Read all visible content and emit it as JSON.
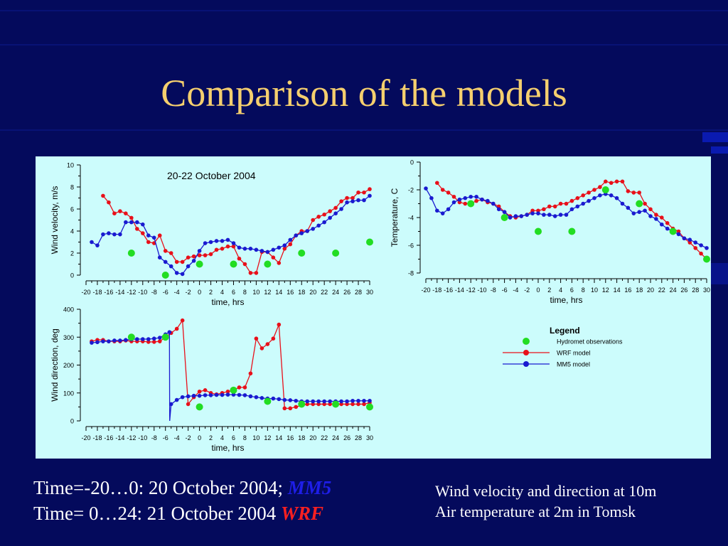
{
  "slide_title": "Comparison of the models",
  "caption_left": {
    "line1": "Time=-20…0: 20 October 2004; ",
    "line1_model": "MM5",
    "line2": "Time=  0…24: 21 October 2004 ",
    "line2_model": "WRF"
  },
  "caption_right": {
    "line1": "Wind velocity and direction at 10m",
    "line2": "Air temperature at 2m in Tomsk"
  },
  "colors": {
    "background": "#040a5c",
    "title": "#f5cf6e",
    "panel": "#ccfcfc",
    "wrf": "#e8101a",
    "mm5": "#1a1ad0",
    "obs": "#22dd22"
  },
  "legend": {
    "title": "Legend",
    "items": [
      "Hydromet observations",
      "WRF model",
      "MM5 model"
    ]
  },
  "chart_data": [
    {
      "type": "line",
      "title": "20-22 October 2004",
      "xlabel": "time, hrs",
      "ylabel": "Wind velocity, m/s",
      "xlim": [
        -20,
        30
      ],
      "ylim": [
        0,
        10
      ],
      "yticks": [
        0,
        2,
        4,
        6,
        8,
        10
      ],
      "xticks": [
        -20,
        -18,
        -16,
        -14,
        -12,
        -10,
        -8,
        -6,
        -4,
        -2,
        0,
        2,
        4,
        6,
        8,
        10,
        12,
        14,
        16,
        18,
        20,
        22,
        24,
        26,
        28,
        30
      ],
      "series": [
        {
          "name": "WRF model",
          "kind": "line",
          "x": [
            -17,
            -16,
            -15,
            -14,
            -13,
            -12,
            -11,
            -10,
            -9,
            -8,
            -7,
            -6,
            -5,
            -4,
            -3,
            -2,
            -1,
            0,
            1,
            2,
            3,
            4,
            5,
            6,
            7,
            8,
            9,
            10,
            11,
            12,
            13,
            14,
            15,
            16,
            17,
            18,
            19,
            20,
            21,
            22,
            23,
            24,
            25,
            26,
            27,
            28,
            29,
            30
          ],
          "y": [
            7.2,
            6.6,
            5.6,
            5.8,
            5.6,
            5.2,
            4.2,
            3.8,
            3.0,
            2.9,
            3.6,
            2.2,
            2.0,
            1.2,
            1.2,
            1.6,
            1.7,
            1.8,
            1.8,
            1.9,
            2.3,
            2.4,
            2.6,
            2.6,
            1.5,
            1.0,
            0.2,
            0.2,
            2.1,
            2.1,
            1.6,
            1.1,
            2.4,
            2.8,
            3.6,
            4.0,
            4.0,
            5.0,
            5.3,
            5.5,
            5.8,
            6.1,
            6.7,
            7.0,
            7.0,
            7.5,
            7.5,
            7.8
          ]
        },
        {
          "name": "MM5 model",
          "kind": "line",
          "x": [
            -19,
            -18,
            -17,
            -16,
            -15,
            -14,
            -13,
            -12,
            -11,
            -10,
            -9,
            -8,
            -7,
            -6,
            -5,
            -4,
            -3,
            -2,
            -1,
            0,
            1,
            2,
            3,
            4,
            5,
            6,
            7,
            8,
            9,
            10,
            11,
            12,
            13,
            14,
            15,
            16,
            17,
            18,
            19,
            20,
            21,
            22,
            23,
            24,
            25,
            26,
            27,
            28,
            29,
            30
          ],
          "y": [
            3.0,
            2.7,
            3.7,
            3.8,
            3.7,
            3.7,
            4.8,
            4.8,
            4.8,
            4.6,
            3.6,
            3.4,
            1.6,
            1.2,
            0.8,
            0.2,
            0.1,
            0.8,
            1.3,
            2.2,
            2.9,
            3.0,
            3.1,
            3.1,
            3.2,
            2.9,
            2.5,
            2.4,
            2.4,
            2.3,
            2.2,
            2.1,
            2.3,
            2.5,
            2.7,
            3.2,
            3.6,
            3.8,
            4.0,
            4.2,
            4.5,
            4.8,
            5.2,
            5.6,
            6.0,
            6.6,
            6.7,
            6.8,
            6.8,
            7.2
          ]
        },
        {
          "name": "Hydromet observations",
          "kind": "points",
          "x": [
            -12,
            -6,
            0,
            6,
            12,
            18,
            24,
            30
          ],
          "y": [
            2.0,
            0.0,
            1.0,
            1.0,
            1.0,
            2.0,
            2.0,
            3.0
          ]
        }
      ]
    },
    {
      "type": "line",
      "xlabel": "time, hrs",
      "ylabel": "Temperature, C",
      "xlim": [
        -20,
        30
      ],
      "ylim": [
        -8,
        0
      ],
      "yticks": [
        0,
        -2,
        -4,
        -6,
        -8
      ],
      "xticks": [
        -20,
        -18,
        -16,
        -14,
        -12,
        -10,
        -8,
        -6,
        -4,
        -2,
        0,
        2,
        4,
        6,
        8,
        10,
        12,
        14,
        16,
        18,
        20,
        22,
        24,
        26,
        28,
        30
      ],
      "series": [
        {
          "name": "WRF model",
          "kind": "line",
          "x": [
            -18,
            -17,
            -16,
            -15,
            -14,
            -13,
            -12,
            -11,
            -10,
            -9,
            -8,
            -7,
            -6,
            -5,
            -4,
            -3,
            -2,
            -1,
            0,
            1,
            2,
            3,
            4,
            5,
            6,
            7,
            8,
            9,
            10,
            11,
            12,
            13,
            14,
            15,
            16,
            17,
            18,
            19,
            20,
            21,
            22,
            23,
            24,
            25,
            26,
            27,
            28,
            29,
            30
          ],
          "y": [
            -1.5,
            -2.0,
            -2.2,
            -2.5,
            -2.9,
            -3.0,
            -3.0,
            -2.8,
            -2.7,
            -2.9,
            -3.0,
            -3.2,
            -3.6,
            -3.9,
            -4.0,
            -3.9,
            -3.8,
            -3.5,
            -3.5,
            -3.4,
            -3.2,
            -3.2,
            -3.0,
            -3.0,
            -2.8,
            -2.6,
            -2.4,
            -2.2,
            -2.0,
            -1.8,
            -1.4,
            -1.5,
            -1.4,
            -1.4,
            -2.1,
            -2.2,
            -2.2,
            -3.0,
            -3.4,
            -3.8,
            -4.0,
            -4.4,
            -4.8,
            -5.0,
            -5.5,
            -5.8,
            -6.2,
            -6.6,
            -7.0
          ]
        },
        {
          "name": "MM5 model",
          "kind": "line",
          "x": [
            -20,
            -19,
            -18,
            -17,
            -16,
            -15,
            -14,
            -13,
            -12,
            -11,
            -10,
            -9,
            -8,
            -7,
            -6,
            -5,
            -4,
            -3,
            -2,
            -1,
            0,
            1,
            2,
            3,
            4,
            5,
            6,
            7,
            8,
            9,
            10,
            11,
            12,
            13,
            14,
            15,
            16,
            17,
            18,
            19,
            20,
            21,
            22,
            23,
            24,
            25,
            26,
            27,
            28,
            29,
            30
          ],
          "y": [
            -1.9,
            -2.6,
            -3.5,
            -3.7,
            -3.4,
            -2.9,
            -2.7,
            -2.6,
            -2.5,
            -2.5,
            -2.7,
            -2.8,
            -3.0,
            -3.4,
            -3.6,
            -4.0,
            -3.9,
            -3.9,
            -3.8,
            -3.7,
            -3.7,
            -3.8,
            -3.8,
            -3.9,
            -3.8,
            -3.8,
            -3.4,
            -3.2,
            -3.0,
            -2.8,
            -2.6,
            -2.4,
            -2.3,
            -2.4,
            -2.6,
            -3.0,
            -3.3,
            -3.7,
            -3.6,
            -3.5,
            -3.9,
            -4.1,
            -4.5,
            -4.8,
            -5.0,
            -5.2,
            -5.5,
            -5.6,
            -5.8,
            -6.0,
            -6.2
          ]
        },
        {
          "name": "Hydromet observations",
          "kind": "points",
          "x": [
            -12,
            -6,
            0,
            6,
            12,
            18,
            24,
            30
          ],
          "y": [
            -3.0,
            -4.0,
            -5.0,
            -5.0,
            -2.0,
            -3.0,
            -5.0,
            -7.0
          ]
        }
      ]
    },
    {
      "type": "line",
      "xlabel": "time, hrs",
      "ylabel": "Wind direction, deg",
      "xlim": [
        -20,
        30
      ],
      "ylim": [
        0,
        400
      ],
      "yticks": [
        0,
        100,
        200,
        300,
        400
      ],
      "xticks": [
        -20,
        -18,
        -16,
        -14,
        -12,
        -10,
        -8,
        -6,
        -4,
        -2,
        0,
        2,
        4,
        6,
        8,
        10,
        12,
        14,
        16,
        18,
        20,
        22,
        24,
        26,
        28,
        30
      ],
      "series": [
        {
          "name": "WRF model",
          "kind": "line",
          "x": [
            -19,
            -18,
            -17,
            -16,
            -15,
            -14,
            -13,
            -12,
            -11,
            -10,
            -9,
            -8,
            -7,
            -6,
            -5,
            -4,
            -3,
            -2,
            -1,
            0,
            1,
            2,
            3,
            4,
            5,
            6,
            7,
            8,
            9,
            10,
            11,
            12,
            13,
            14,
            15,
            16,
            17,
            18,
            19,
            20,
            21,
            22,
            23,
            24,
            25,
            26,
            27,
            28,
            29,
            30
          ],
          "y": [
            285,
            290,
            290,
            285,
            285,
            285,
            288,
            285,
            285,
            285,
            283,
            283,
            285,
            300,
            315,
            330,
            360,
            60,
            85,
            105,
            110,
            100,
            95,
            100,
            105,
            110,
            120,
            120,
            170,
            295,
            260,
            275,
            295,
            345,
            45,
            45,
            50,
            55,
            60,
            60,
            60,
            60,
            60,
            60,
            60,
            60,
            60,
            60,
            60,
            65
          ]
        },
        {
          "name": "MM5 model",
          "kind": "line",
          "x": [
            -19,
            -18,
            -17,
            -16,
            -15,
            -14,
            -13,
            -12,
            -11,
            -10,
            -9,
            -8,
            -7,
            -6,
            -5.3,
            -5.25,
            -5,
            -4,
            -3,
            -2,
            -1,
            0,
            1,
            2,
            3,
            4,
            5,
            6,
            7,
            8,
            9,
            10,
            11,
            12,
            13,
            14,
            15,
            16,
            17,
            18,
            19,
            20,
            21,
            22,
            23,
            24,
            25,
            26,
            27,
            28,
            29,
            30
          ],
          "y": [
            280,
            282,
            285,
            285,
            288,
            288,
            290,
            292,
            293,
            293,
            293,
            295,
            298,
            310,
            318,
            0,
            60,
            75,
            85,
            88,
            90,
            90,
            92,
            92,
            93,
            93,
            94,
            94,
            93,
            92,
            88,
            85,
            82,
            80,
            80,
            78,
            75,
            74,
            72,
            70,
            70,
            70,
            70,
            70,
            70,
            70,
            70,
            70,
            72,
            72,
            72,
            72
          ]
        },
        {
          "name": "Hydromet observations",
          "kind": "points",
          "x": [
            -12,
            -6,
            0,
            6,
            12,
            18,
            24,
            30
          ],
          "y": [
            300,
            300,
            50,
            110,
            70,
            60,
            60,
            50
          ]
        }
      ]
    }
  ]
}
